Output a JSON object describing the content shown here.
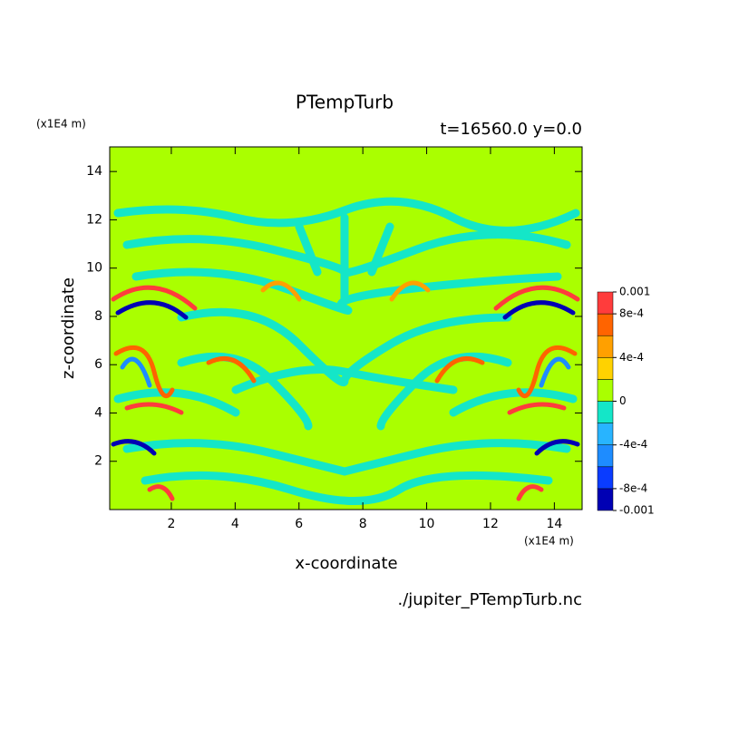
{
  "chart_data": {
    "type": "contour",
    "title": "PTempTurb",
    "subtitle": "t=16560.0 y=0.0",
    "x_label": "x-coordinate",
    "y_label": "z-coordinate",
    "x_units": "(x1E4 m)",
    "y_units": "(x1E4 m)",
    "footer": "./jupiter_PTempTurb.nc",
    "xlim": [
      0.07,
      14.87
    ],
    "ylim": [
      0,
      15.02
    ],
    "xticks": [
      2,
      4,
      6,
      8,
      10,
      12,
      14
    ],
    "yticks": [
      2,
      4,
      6,
      8,
      10,
      12,
      14
    ],
    "levels": [
      -0.001,
      -0.0008,
      -0.0006,
      -0.0004,
      -0.0002,
      0,
      0.0002,
      0.0004,
      0.0006,
      0.0008,
      0.001
    ],
    "colors": [
      "#0000b4",
      "#0a3cff",
      "#1e8cff",
      "#28b4ff",
      "#14e6c8",
      "#aaff00",
      "#ffd200",
      "#ffa000",
      "#ff6400",
      "#ff3c3c"
    ],
    "colorbar_ticks": [
      0.001,
      {
        "value": 0.0008,
        "label": "8e-4"
      },
      {
        "value": 0.0004,
        "label": "4e-4"
      },
      0,
      {
        "value": -0.0004,
        "label": "-4e-4"
      },
      {
        "value": -0.0008,
        "label": "-8e-4"
      },
      -0.001
    ]
  }
}
